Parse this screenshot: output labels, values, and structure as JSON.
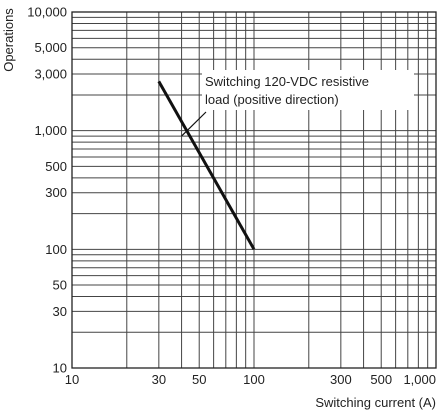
{
  "chart_data": {
    "type": "line",
    "x_scale": "log",
    "y_scale": "log",
    "xlim": [
      10,
      1000
    ],
    "ylim": [
      10,
      10000
    ],
    "xlabel": "Switching current (A)",
    "ylabel": "Operations",
    "title": "",
    "grid": true,
    "x_ticks": [
      {
        "value": 10,
        "label": "10"
      },
      {
        "value": 30,
        "label": "30"
      },
      {
        "value": 50,
        "label": "50"
      },
      {
        "value": 100,
        "label": "100"
      },
      {
        "value": 300,
        "label": "300"
      },
      {
        "value": 500,
        "label": "500"
      },
      {
        "value": 1000,
        "label": "1,000"
      }
    ],
    "y_ticks": [
      {
        "value": 10,
        "label": "10"
      },
      {
        "value": 30,
        "label": "30"
      },
      {
        "value": 50,
        "label": "50"
      },
      {
        "value": 100,
        "label": "100"
      },
      {
        "value": 300,
        "label": "300"
      },
      {
        "value": 500,
        "label": "500"
      },
      {
        "value": 1000,
        "label": "1,000"
      },
      {
        "value": 3000,
        "label": "3,000"
      },
      {
        "value": 5000,
        "label": "5,000"
      },
      {
        "value": 10000,
        "label": "10,000"
      }
    ],
    "series": [
      {
        "x": [
          30,
          100
        ],
        "y": [
          2600,
          100
        ]
      }
    ],
    "annotation": {
      "lines": [
        "Switching 120-VDC resistive",
        "load (positive direction)"
      ],
      "points_to": {
        "x": 40,
        "y": 900
      }
    },
    "colors": {
      "grid": "#444444",
      "line": "#111111",
      "text": "#222222"
    }
  }
}
